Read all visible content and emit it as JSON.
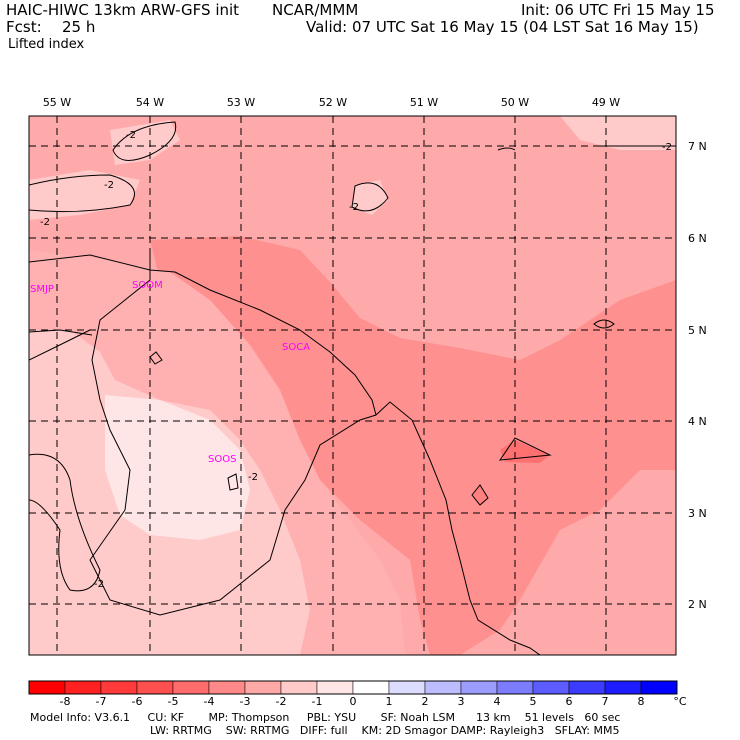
{
  "header": {
    "model": "HAIC-HIWC 13km ARW-GFS init",
    "org": "NCAR/MMM",
    "init": "Init: 06 UTC Fri 15 May 15",
    "fcst_label": "Fcst:",
    "fcst_value": "25 h",
    "valid": "Valid: 07 UTC Sat 16 May 15 (04 LST Sat 16 May 15)",
    "field": "Lifted index"
  },
  "map": {
    "lon_labels": [
      "55 W",
      "54 W",
      "53 W",
      "52 W",
      "51 W",
      "50 W",
      "49 W"
    ],
    "lat_labels": [
      "7 N",
      "6 N",
      "5 N",
      "4 N",
      "3 N",
      "2 N"
    ],
    "stations": [
      "SMJP",
      "SOOM",
      "SOCA",
      "SOOS"
    ],
    "contour_labels": [
      "-2",
      "-2",
      "-2",
      "-2",
      "-2",
      "-2",
      "-2"
    ]
  },
  "colorbar": {
    "unit": "°C",
    "ticks": [
      "-8",
      "-7",
      "-6",
      "-5",
      "-4",
      "-3",
      "-2",
      "-1",
      "0",
      "1",
      "2",
      "3",
      "4",
      "5",
      "6",
      "7",
      "8"
    ],
    "colors": [
      "#ff0000",
      "#ff2020",
      "#ff3a3a",
      "#ff5050",
      "#ff6c6c",
      "#ff8888",
      "#ffa8a8",
      "#ffcaca",
      "#ffe6e6",
      "#ffffff",
      "#dcdcff",
      "#bcbcff",
      "#9c9cff",
      "#7c7cff",
      "#5c5cff",
      "#3c3cff",
      "#1c1cff",
      "#0000ff"
    ]
  },
  "footer": {
    "line1": "Model Info: V3.6.1     CU: KF       MP: Thompson     PBL: YSU       SF: Noah LSM      13 km    51 levels   60 sec",
    "line2": "LW: RRTMG    SW: RRTMG   DIFF: full    KM: 2D Smagor DAMP: Rayleigh3   SFLAY: MM5"
  }
}
